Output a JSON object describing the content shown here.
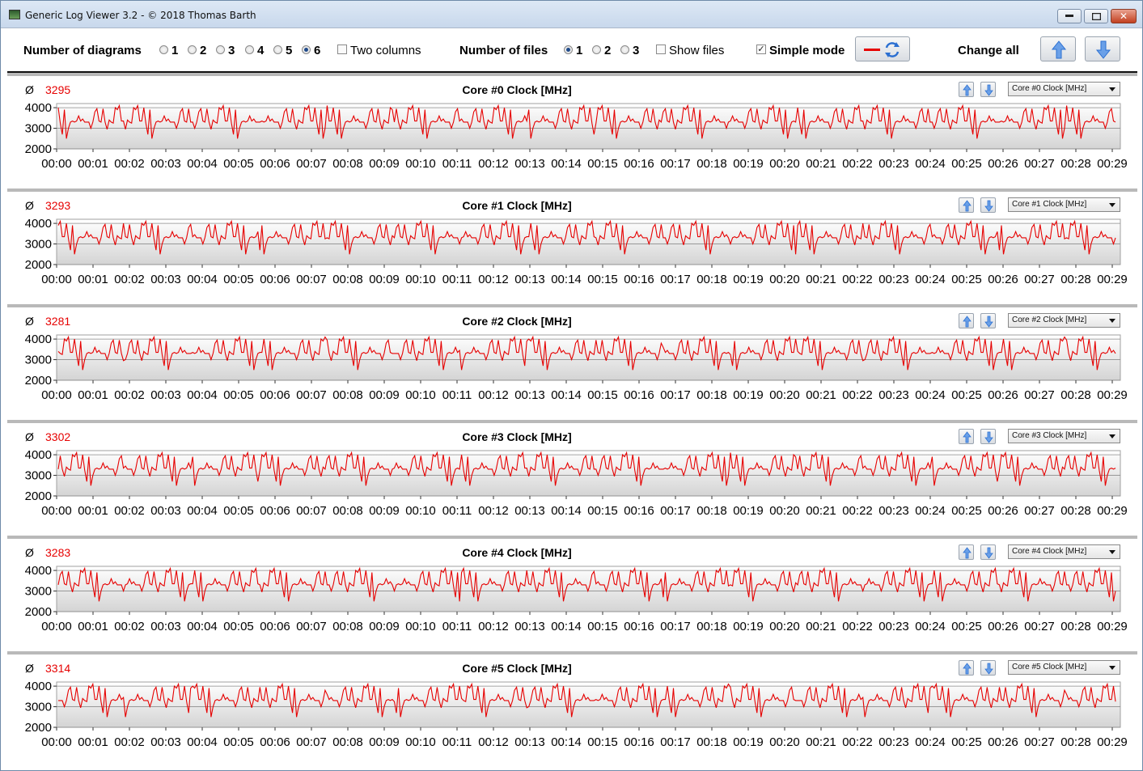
{
  "window": {
    "title": "Generic Log Viewer 3.2 - © 2018 Thomas Barth",
    "minimize_icon": "minimize-icon",
    "maximize_icon": "maximize-icon",
    "close_icon": "close-icon",
    "close_label": "✕"
  },
  "toolbar": {
    "num_diagrams_label": "Number of diagrams",
    "diagram_options": [
      "1",
      "2",
      "3",
      "4",
      "5",
      "6"
    ],
    "diagram_selected": "6",
    "two_columns_label": "Two columns",
    "two_columns_checked": false,
    "num_files_label": "Number of files",
    "file_options": [
      "1",
      "2",
      "3"
    ],
    "file_selected": "1",
    "show_files_label": "Show files",
    "show_files_checked": false,
    "simple_mode_label": "Simple mode",
    "simple_mode_checked": true,
    "check_mark": "✓",
    "change_all_label": "Change all",
    "line_color": "#e60000",
    "accent_color": "#2b6fd1"
  },
  "panels": [
    {
      "title": "Core #0 Clock [MHz]",
      "average": "3295",
      "selection": "Core #0 Clock [MHz]"
    },
    {
      "title": "Core #1 Clock [MHz]",
      "average": "3293",
      "selection": "Core #1 Clock [MHz]"
    },
    {
      "title": "Core #2 Clock [MHz]",
      "average": "3281",
      "selection": "Core #2 Clock [MHz]"
    },
    {
      "title": "Core #3 Clock [MHz]",
      "average": "3302",
      "selection": "Core #3 Clock [MHz]"
    },
    {
      "title": "Core #4 Clock [MHz]",
      "average": "3283",
      "selection": "Core #4 Clock [MHz]"
    },
    {
      "title": "Core #5 Clock [MHz]",
      "average": "3314",
      "selection": "Core #5 Clock [MHz]"
    }
  ],
  "average_symbol": "Ø",
  "chart_data": {
    "type": "line",
    "y_ticks": [
      "4000",
      "3000",
      "2000"
    ],
    "ylim": [
      2000,
      4200
    ],
    "x_ticks": [
      "00:00",
      "00:01",
      "00:02",
      "00:03",
      "00:04",
      "00:05",
      "00:06",
      "00:07",
      "00:08",
      "00:09",
      "00:10",
      "00:11",
      "00:12",
      "00:13",
      "00:14",
      "00:15",
      "00:16",
      "00:17",
      "00:18",
      "00:19",
      "00:20",
      "00:21",
      "00:22",
      "00:23",
      "00:24",
      "00:25",
      "00:26",
      "00:27",
      "00:28",
      "00:29"
    ],
    "grid": true,
    "series_color": "#e60000",
    "pattern_mhz": [
      4000,
      3950,
      3000,
      2950,
      3600,
      3900,
      3300,
      3250,
      3350,
      3300,
      3400,
      3350,
      4100,
      3000,
      2700,
      3300,
      3350,
      3300,
      3450,
      3350,
      3300,
      3900,
      3950,
      3300,
      3250,
      3300,
      3350,
      3800,
      2500,
      3300,
      3350,
      4000,
      3300
    ]
  }
}
